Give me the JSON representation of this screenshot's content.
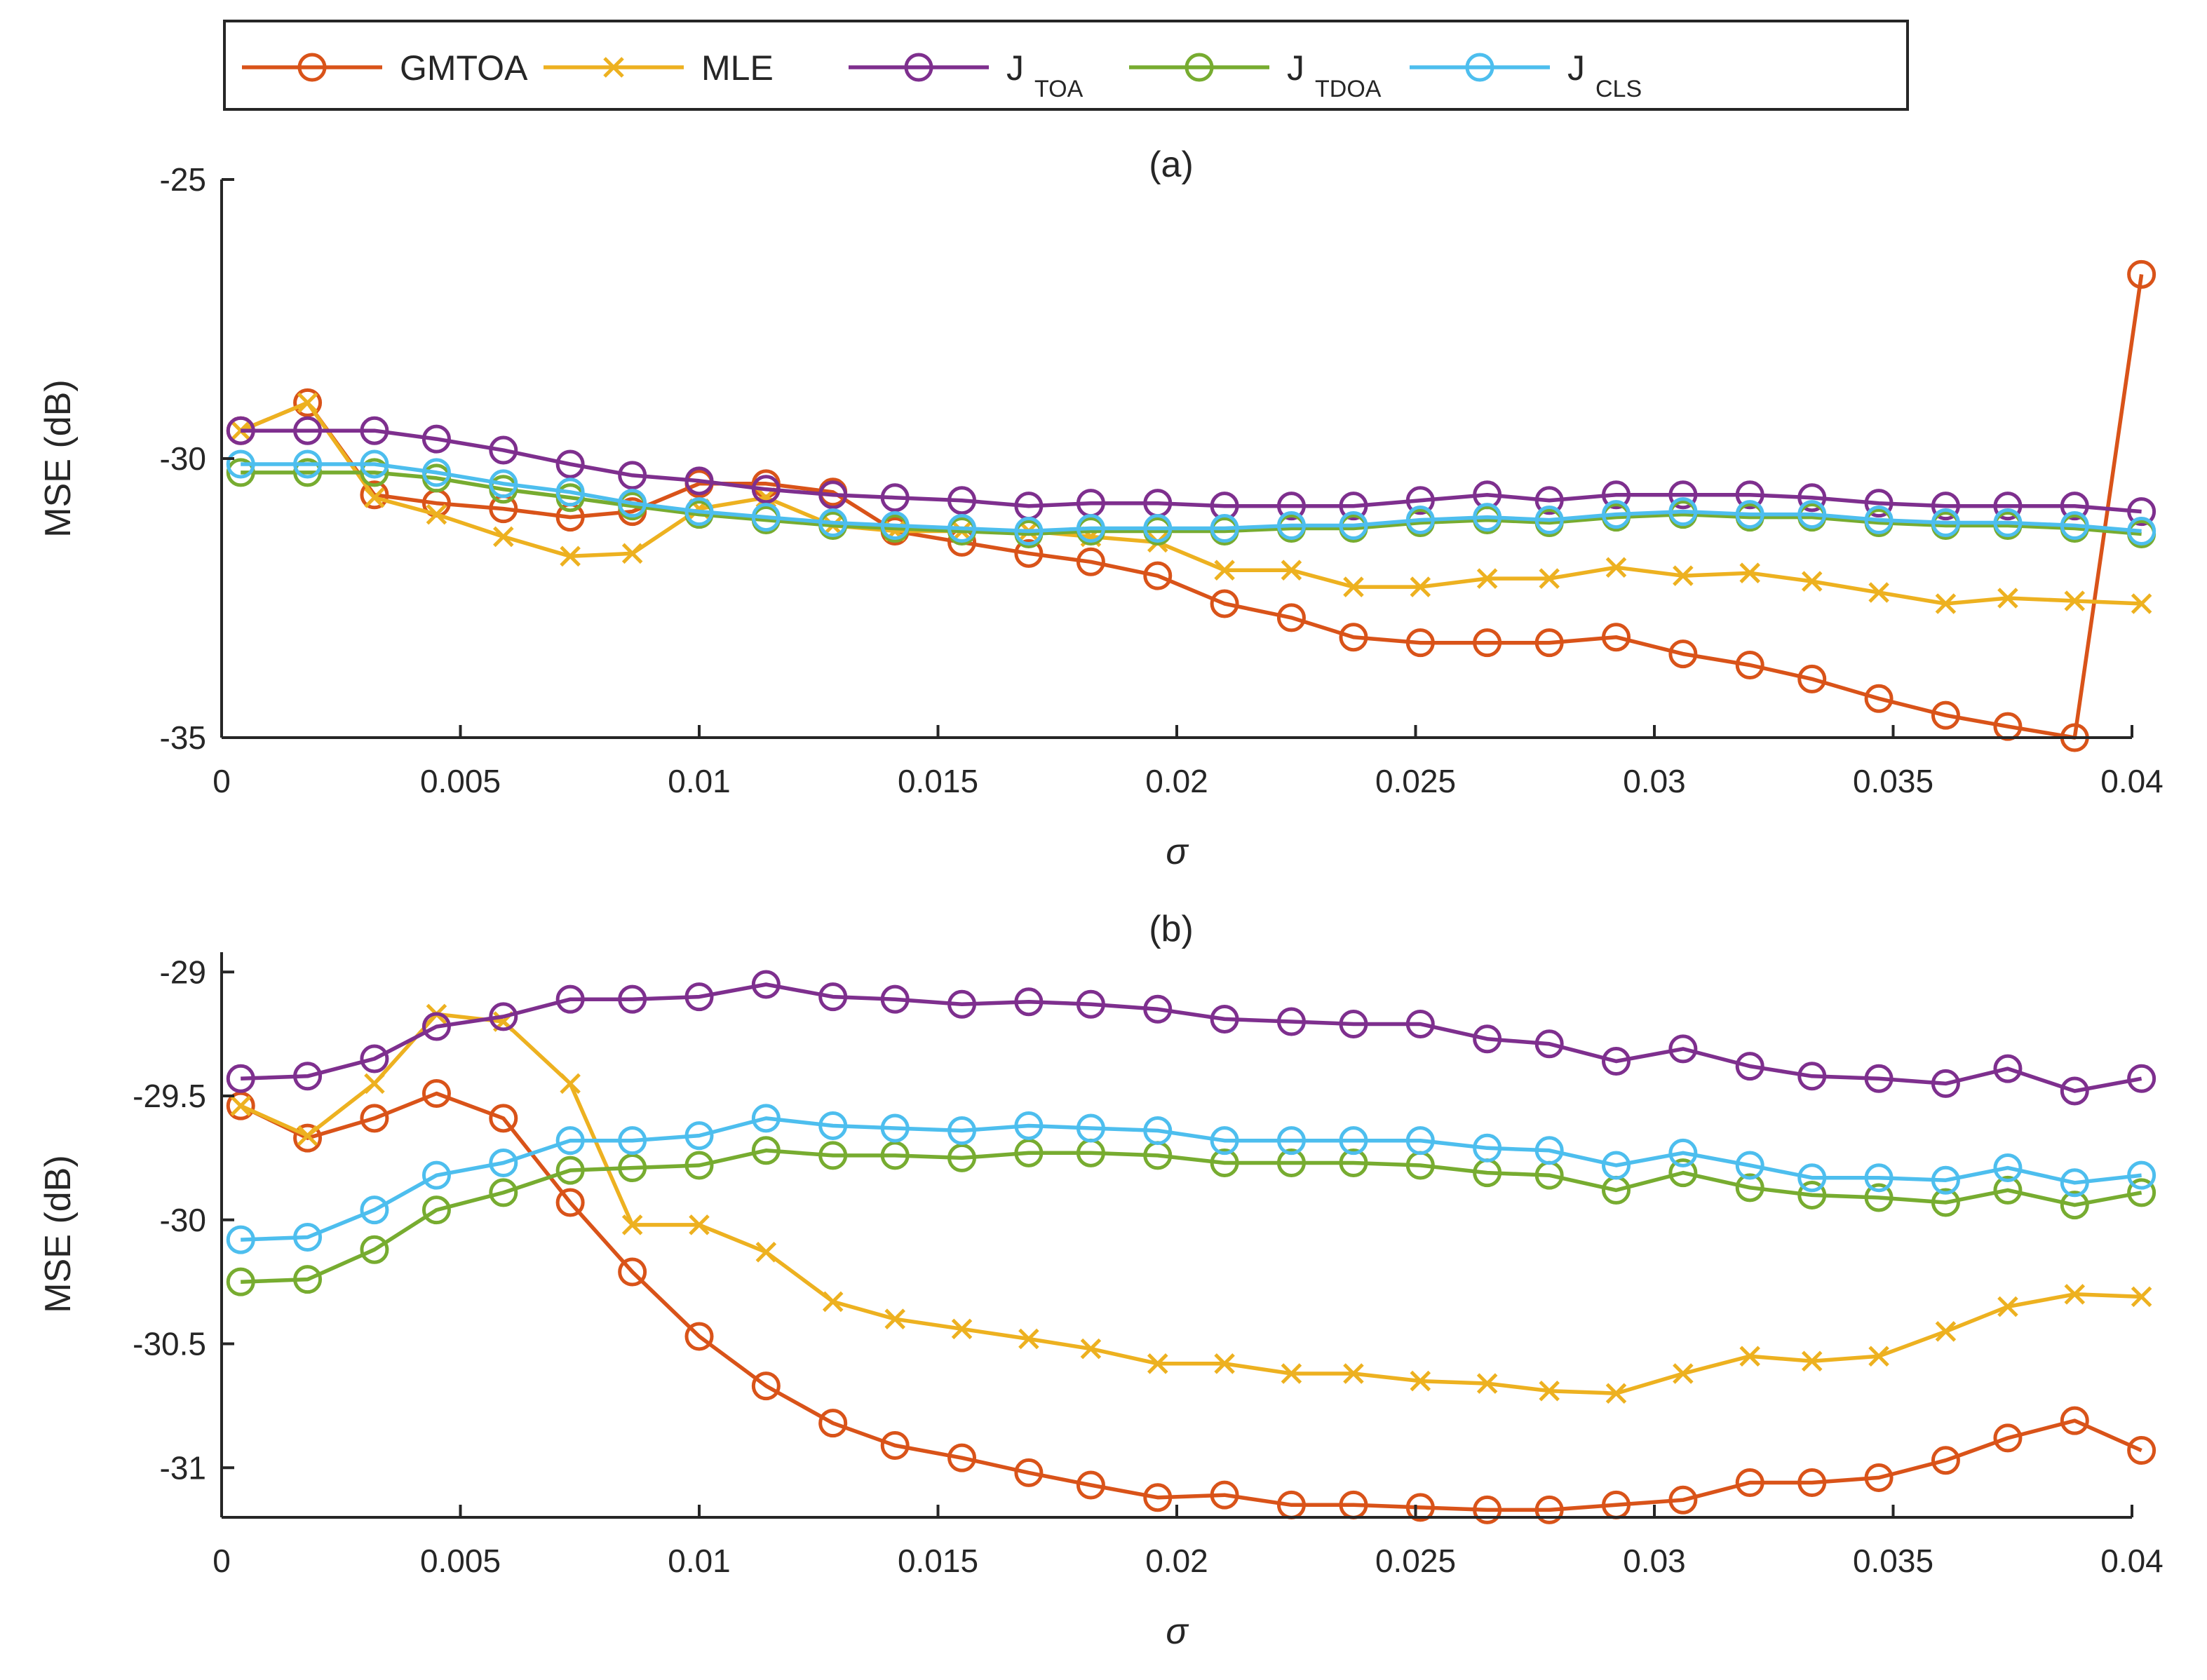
{
  "legend": [
    {
      "name": "GMTOA",
      "main": "GMTOA",
      "sub": "",
      "color": "#D95319",
      "marker": "circle"
    },
    {
      "name": "MLE",
      "main": "MLE",
      "sub": "",
      "color": "#EDB120",
      "marker": "x"
    },
    {
      "name": "J_TOA",
      "main": "J",
      "sub": "TOA",
      "color": "#7E2F8E",
      "marker": "circle"
    },
    {
      "name": "J_TDOA",
      "main": "J",
      "sub": "TDOA",
      "color": "#77AC30",
      "marker": "circle"
    },
    {
      "name": "J_CLS",
      "main": "J",
      "sub": "CLS",
      "color": "#4DBEEE",
      "marker": "circle"
    }
  ],
  "chart_data": [
    {
      "type": "line",
      "title": "(a)",
      "xlabel": "σ",
      "ylabel": "MSE (dB)",
      "xlim": [
        0,
        0.04
      ],
      "ylim": [
        -35,
        -25
      ],
      "xticks": [
        0,
        0.005,
        0.01,
        0.015,
        0.02,
        0.025,
        0.03,
        0.035,
        0.04
      ],
      "xtick_labels": [
        "0",
        "0.005",
        "0.01",
        "0.015",
        "0.02",
        "0.025",
        "0.03",
        "0.035",
        "0.04"
      ],
      "yticks": [
        -35,
        -30,
        -25
      ],
      "ytick_labels": [
        "-35",
        "-30",
        "-25"
      ],
      "x": [
        0.0004,
        0.0018,
        0.0032,
        0.0045,
        0.0059,
        0.0073,
        0.0086,
        0.01,
        0.0114,
        0.0128,
        0.0141,
        0.0155,
        0.0169,
        0.0182,
        0.0196,
        0.021,
        0.0224,
        0.0237,
        0.0251,
        0.0265,
        0.0278,
        0.0292,
        0.0306,
        0.032,
        0.0333,
        0.0347,
        0.0361,
        0.0374,
        0.0388,
        0.0402
      ],
      "series": [
        {
          "name": "GMTOA",
          "values": [
            -29.5,
            -29.0,
            -30.65,
            -30.8,
            -30.9,
            -31.05,
            -30.95,
            -30.45,
            -30.45,
            -30.6,
            -31.3,
            -31.5,
            -31.7,
            -31.85,
            -32.1,
            -32.6,
            -32.85,
            -33.2,
            -33.3,
            -33.3,
            -33.3,
            -33.2,
            -33.5,
            -33.7,
            -33.95,
            -34.3,
            -34.6,
            -34.8,
            -35.0,
            -26.7
          ]
        },
        {
          "name": "MLE",
          "values": [
            -29.5,
            -29.0,
            -30.7,
            -31.0,
            -31.4,
            -31.75,
            -31.7,
            -30.9,
            -30.7,
            -31.2,
            -31.3,
            -31.3,
            -31.3,
            -31.4,
            -31.5,
            -32.0,
            -32.0,
            -32.3,
            -32.3,
            -32.15,
            -32.15,
            -31.95,
            -32.1,
            -32.05,
            -32.2,
            -32.4,
            -32.6,
            -32.5,
            -32.55,
            -32.6
          ]
        },
        {
          "name": "J_TOA",
          "values": [
            -29.5,
            -29.5,
            -29.5,
            -29.65,
            -29.85,
            -30.1,
            -30.3,
            -30.4,
            -30.55,
            -30.65,
            -30.7,
            -30.75,
            -30.85,
            -30.8,
            -30.8,
            -30.85,
            -30.85,
            -30.85,
            -30.75,
            -30.65,
            -30.75,
            -30.65,
            -30.65,
            -30.65,
            -30.7,
            -30.8,
            -30.85,
            -30.85,
            -30.85,
            -30.95
          ]
        },
        {
          "name": "J_TDOA",
          "values": [
            -30.25,
            -30.25,
            -30.25,
            -30.35,
            -30.55,
            -30.7,
            -30.85,
            -31.0,
            -31.1,
            -31.2,
            -31.25,
            -31.3,
            -31.35,
            -31.3,
            -31.3,
            -31.3,
            -31.25,
            -31.25,
            -31.15,
            -31.1,
            -31.15,
            -31.05,
            -31.0,
            -31.05,
            -31.05,
            -31.15,
            -31.2,
            -31.2,
            -31.25,
            -31.35
          ]
        },
        {
          "name": "J_CLS",
          "values": [
            -30.1,
            -30.1,
            -30.1,
            -30.25,
            -30.45,
            -30.6,
            -30.8,
            -30.95,
            -31.05,
            -31.15,
            -31.2,
            -31.25,
            -31.3,
            -31.25,
            -31.25,
            -31.25,
            -31.2,
            -31.2,
            -31.1,
            -31.05,
            -31.1,
            -31.0,
            -30.95,
            -31.0,
            -31.0,
            -31.1,
            -31.15,
            -31.15,
            -31.2,
            -31.3
          ]
        }
      ]
    },
    {
      "type": "line",
      "title": "(b)",
      "xlabel": "σ",
      "ylabel": "MSE (dB)",
      "xlim": [
        0,
        0.04
      ],
      "ylim": [
        -31.2,
        -28.92
      ],
      "xticks": [
        0,
        0.005,
        0.01,
        0.015,
        0.02,
        0.025,
        0.03,
        0.035,
        0.04
      ],
      "xtick_labels": [
        "0",
        "0.005",
        "0.01",
        "0.015",
        "0.02",
        "0.025",
        "0.03",
        "0.035",
        "0.04"
      ],
      "yticks": [
        -31,
        -30.5,
        -30,
        -29.5,
        -29
      ],
      "ytick_labels": [
        "-31",
        "-30.5",
        "-30",
        "-29.5",
        "-29"
      ],
      "x": [
        0.0004,
        0.0018,
        0.0032,
        0.0045,
        0.0059,
        0.0073,
        0.0086,
        0.01,
        0.0114,
        0.0128,
        0.0141,
        0.0155,
        0.0169,
        0.0182,
        0.0196,
        0.021,
        0.0224,
        0.0237,
        0.0251,
        0.0265,
        0.0278,
        0.0292,
        0.0306,
        0.032,
        0.0333,
        0.0347,
        0.0361,
        0.0374,
        0.0388,
        0.0402
      ],
      "series": [
        {
          "name": "GMTOA",
          "values": [
            -29.54,
            -29.67,
            -29.59,
            -29.49,
            -29.59,
            -29.93,
            -30.21,
            -30.47,
            -30.67,
            -30.82,
            -30.91,
            -30.96,
            -31.02,
            -31.07,
            -31.12,
            -31.11,
            -31.15,
            -31.15,
            -31.16,
            -31.17,
            -31.17,
            -31.15,
            -31.13,
            -31.06,
            -31.06,
            -31.04,
            -30.97,
            -30.88,
            -30.81,
            -30.93
          ]
        },
        {
          "name": "MLE",
          "values": [
            -29.54,
            -29.66,
            -29.45,
            -29.17,
            -29.2,
            -29.45,
            -30.02,
            -30.02,
            -30.13,
            -30.33,
            -30.4,
            -30.44,
            -30.48,
            -30.52,
            -30.58,
            -30.58,
            -30.62,
            -30.62,
            -30.65,
            -30.66,
            -30.69,
            -30.7,
            -30.62,
            -30.55,
            -30.57,
            -30.55,
            -30.45,
            -30.35,
            -30.3,
            -30.31
          ]
        },
        {
          "name": "J_TOA",
          "values": [
            -29.43,
            -29.42,
            -29.35,
            -29.22,
            -29.18,
            -29.11,
            -29.11,
            -29.1,
            -29.05,
            -29.1,
            -29.11,
            -29.13,
            -29.12,
            -29.13,
            -29.15,
            -29.19,
            -29.2,
            -29.21,
            -29.21,
            -29.27,
            -29.29,
            -29.36,
            -29.31,
            -29.38,
            -29.42,
            -29.43,
            -29.45,
            -29.39,
            -29.48,
            -29.43
          ]
        },
        {
          "name": "J_TDOA",
          "values": [
            -30.25,
            -30.24,
            -30.12,
            -29.96,
            -29.89,
            -29.8,
            -29.79,
            -29.78,
            -29.72,
            -29.74,
            -29.74,
            -29.75,
            -29.73,
            -29.73,
            -29.74,
            -29.77,
            -29.77,
            -29.77,
            -29.78,
            -29.81,
            -29.82,
            -29.88,
            -29.81,
            -29.87,
            -29.9,
            -29.91,
            -29.93,
            -29.88,
            -29.94,
            -29.89
          ]
        },
        {
          "name": "J_CLS",
          "values": [
            -30.08,
            -30.07,
            -29.96,
            -29.82,
            -29.77,
            -29.68,
            -29.68,
            -29.66,
            -29.59,
            -29.62,
            -29.63,
            -29.64,
            -29.62,
            -29.63,
            -29.64,
            -29.68,
            -29.68,
            -29.68,
            -29.68,
            -29.71,
            -29.72,
            -29.78,
            -29.73,
            -29.78,
            -29.83,
            -29.83,
            -29.84,
            -29.79,
            -29.85,
            -29.82
          ]
        }
      ]
    }
  ]
}
